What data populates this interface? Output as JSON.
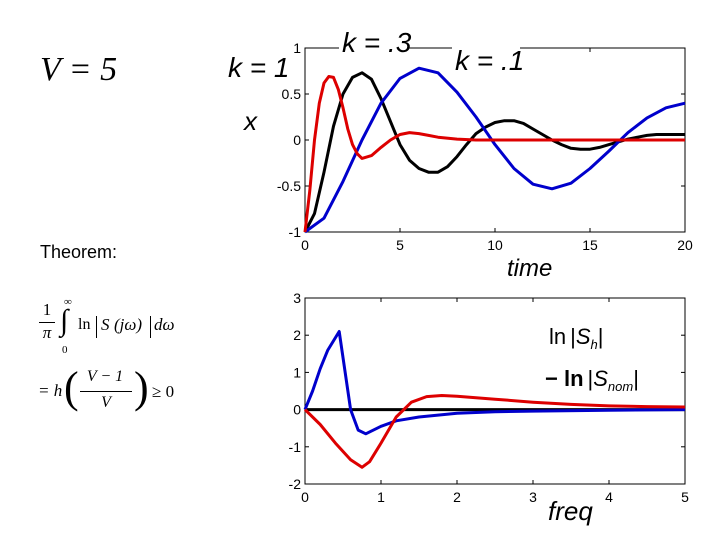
{
  "left_panel": {
    "v_eq": "V = 5",
    "theorem_label": "Theorem:",
    "formula_line1": "(1/π) ∫₀^∞ ln|S(jω)| dω",
    "formula_line2": "= h((V − 1)/V) ≥ 0",
    "f_one": "1",
    "f_pi": "π",
    "f_int": "∫",
    "f_inf": "∞",
    "f_zero": "0",
    "f_ln": "ln",
    "f_S": "S",
    "f_jw": "(jω)",
    "f_dw": "dω",
    "f_eq": "= h",
    "f_num": "V − 1",
    "f_den": "V",
    "f_ge": "≥ 0"
  },
  "chart_data": [
    {
      "type": "line",
      "xlabel": "time",
      "ylabel": "x",
      "xlim": [
        0,
        20
      ],
      "ylim": [
        -1,
        1
      ],
      "xticks": [
        0,
        5,
        10,
        15,
        20
      ],
      "yticks": [
        1,
        0.5,
        0,
        -0.5,
        -1
      ],
      "ytick_labels": [
        "1",
        "0.5",
        "0",
        "-0.5",
        "-1"
      ],
      "xtick_labels": [
        "0",
        "5",
        "10",
        "15",
        "20"
      ],
      "grid": false,
      "annotations": [
        {
          "text": "k = 1",
          "color": "#000000"
        },
        {
          "text": "k = .3",
          "color": "#000000"
        },
        {
          "text": "k = .1",
          "color": "#000000"
        }
      ],
      "series": [
        {
          "color": "#000000",
          "x": [
            0,
            0.5,
            1,
            1.5,
            2,
            2.5,
            3,
            3.5,
            4,
            4.5,
            5,
            5.5,
            6,
            6.5,
            7,
            7.5,
            8,
            8.5,
            9,
            9.5,
            10,
            10.5,
            11,
            11.5,
            12,
            12.5,
            13,
            13.5,
            14,
            14.5,
            15,
            15.5,
            16,
            16.5,
            17,
            17.5,
            18,
            18.5,
            19,
            19.5,
            20
          ],
          "values": [
            -1,
            -0.8,
            -0.35,
            0.15,
            0.5,
            0.68,
            0.73,
            0.66,
            0.45,
            0.2,
            -0.05,
            -0.22,
            -0.31,
            -0.35,
            -0.35,
            -0.29,
            -0.18,
            -0.05,
            0.07,
            0.14,
            0.19,
            0.21,
            0.21,
            0.18,
            0.12,
            0.06,
            0,
            -0.05,
            -0.09,
            -0.1,
            -0.1,
            -0.08,
            -0.05,
            -0.02,
            0.01,
            0.03,
            0.05,
            0.06,
            0.06,
            0.06,
            0.06
          ]
        },
        {
          "color": "#0000cc",
          "x": [
            0,
            1,
            2,
            3,
            4,
            5,
            6,
            7,
            8,
            9,
            10,
            11,
            12,
            13,
            14,
            15,
            16,
            17,
            18,
            19,
            20
          ],
          "values": [
            -1,
            -0.85,
            -0.45,
            0,
            0.4,
            0.67,
            0.78,
            0.73,
            0.52,
            0.25,
            -0.05,
            -0.31,
            -0.48,
            -0.53,
            -0.47,
            -0.31,
            -0.12,
            0.08,
            0.24,
            0.35,
            0.4
          ]
        },
        {
          "color": "#dd0000",
          "x": [
            0,
            0.25,
            0.5,
            0.75,
            1,
            1.25,
            1.5,
            1.75,
            2,
            2.25,
            2.5,
            2.75,
            3,
            3.5,
            4,
            4.5,
            5,
            5.5,
            6,
            6.5,
            7,
            8,
            9,
            10,
            12,
            15,
            20
          ],
          "values": [
            -1,
            -0.55,
            0,
            0.4,
            0.62,
            0.69,
            0.68,
            0.55,
            0.35,
            0.12,
            -0.05,
            -0.15,
            -0.2,
            -0.17,
            -0.08,
            0,
            0.06,
            0.08,
            0.07,
            0.05,
            0.03,
            0.01,
            0,
            0,
            0,
            0,
            0
          ]
        }
      ]
    },
    {
      "type": "line",
      "xlabel": "freq",
      "xlim": [
        0,
        5
      ],
      "ylim": [
        -2,
        3
      ],
      "xticks": [
        0,
        1,
        2,
        3,
        4,
        5
      ],
      "yticks": [
        3,
        2,
        1,
        0,
        -1,
        -2
      ],
      "ytick_labels": [
        "3",
        "2",
        "1",
        "0",
        "-1",
        "-2"
      ],
      "xtick_labels": [
        "0",
        "1",
        "2",
        "3",
        "4",
        "5"
      ],
      "grid": false,
      "legend_lines": [
        {
          "prefix": "ln",
          "var": "S",
          "sub": "h",
          "color": "#000000"
        },
        {
          "prefix": "− ln",
          "var": "S",
          "sub": "nom",
          "color": "#000000"
        }
      ],
      "series": [
        {
          "color": "#000000",
          "x": [
            0,
            5
          ],
          "values": [
            0,
            0
          ]
        },
        {
          "color": "#0000cc",
          "x": [
            0,
            0.1,
            0.2,
            0.3,
            0.45,
            0.55,
            0.6,
            0.7,
            0.8,
            1,
            1.2,
            1.5,
            2,
            2.5,
            3,
            4,
            5
          ],
          "values": [
            0,
            0.5,
            1.1,
            1.6,
            2.1,
            0.7,
            0,
            -0.55,
            -0.65,
            -0.45,
            -0.3,
            -0.2,
            -0.1,
            -0.06,
            -0.04,
            -0.02,
            0
          ]
        },
        {
          "color": "#dd0000",
          "x": [
            0,
            0.2,
            0.4,
            0.6,
            0.75,
            0.85,
            1,
            1.2,
            1.4,
            1.6,
            1.8,
            2,
            2.5,
            3,
            3.5,
            4,
            4.5,
            5
          ],
          "values": [
            0,
            -0.4,
            -0.9,
            -1.35,
            -1.55,
            -1.4,
            -0.9,
            -0.2,
            0.2,
            0.35,
            0.38,
            0.36,
            0.28,
            0.2,
            0.14,
            0.1,
            0.08,
            0.07
          ]
        }
      ]
    }
  ]
}
